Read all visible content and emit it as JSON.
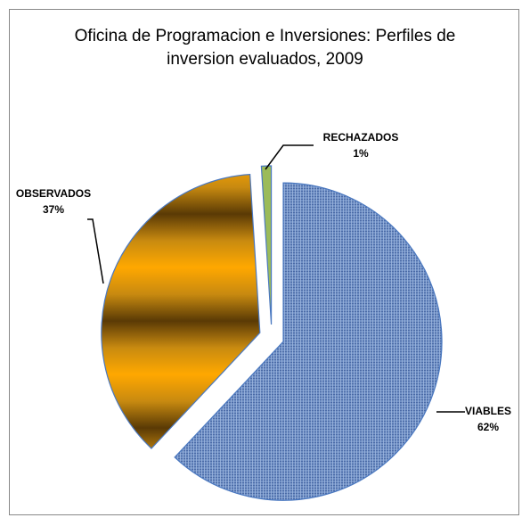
{
  "chart_data": {
    "type": "pie",
    "title": "Oficina de Programacion e Inversiones: Perfiles de inversion evaluados, 2009",
    "categories": [
      "VIABLES",
      "OBSERVADOS",
      "RECHAZADOS"
    ],
    "values": [
      62,
      37,
      1
    ],
    "value_labels": [
      "62%",
      "37%",
      "1%"
    ],
    "colors": [
      "#6f8fc4",
      "#d99a0a",
      "#9bbb59"
    ]
  }
}
